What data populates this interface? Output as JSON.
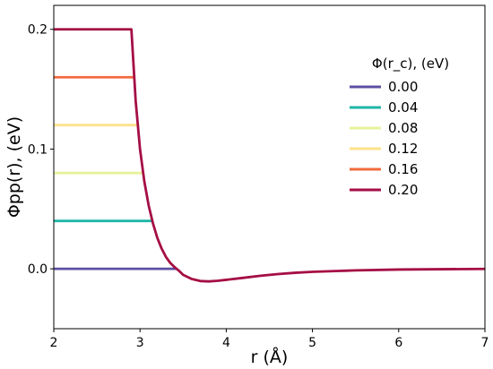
{
  "chart_data": {
    "type": "line",
    "xlabel": "r (Å)",
    "ylabel": "Φpp(r), (eV)",
    "xlim": [
      2,
      7
    ],
    "ylim": [
      -0.05,
      0.22
    ],
    "x_ticks": [
      2,
      3,
      4,
      5,
      6,
      7
    ],
    "y_ticks": [
      0.0,
      0.1,
      0.2
    ],
    "x_tick_labels": [
      "2",
      "3",
      "4",
      "5",
      "6",
      "7"
    ],
    "y_tick_labels": [
      "0.0",
      "0.1",
      "0.2"
    ],
    "grid": false,
    "legend": {
      "title": "Φ(r_c), (eV)",
      "placement": "upper-right",
      "entries": [
        "0.00",
        "0.04",
        "0.08",
        "0.12",
        "0.16",
        "0.20"
      ]
    },
    "series": [
      {
        "name": "0.00",
        "color": "#5e4fa2",
        "cap": 0.0,
        "x": [
          2.0,
          3.42
        ],
        "y": [
          0.0,
          0.0
        ]
      },
      {
        "name": "0.04",
        "color": "#1fb5a5",
        "cap": 0.04,
        "x": [
          2.0,
          3.15
        ],
        "y": [
          0.04,
          0.04
        ]
      },
      {
        "name": "0.08",
        "color": "#e8f29a",
        "cap": 0.08,
        "x": [
          2.0,
          3.03
        ],
        "y": [
          0.08,
          0.08
        ]
      },
      {
        "name": "0.12",
        "color": "#fde28a",
        "cap": 0.12,
        "x": [
          2.0,
          2.97
        ],
        "y": [
          0.12,
          0.12
        ]
      },
      {
        "name": "0.16",
        "color": "#f26b3d",
        "cap": 0.16,
        "x": [
          2.0,
          2.93
        ],
        "y": [
          0.16,
          0.16
        ]
      },
      {
        "name": "0.20",
        "color": "#a50e45",
        "cap": 0.2,
        "x": [
          2.0,
          2.9,
          2.95,
          3.0,
          3.05,
          3.1,
          3.15,
          3.2,
          3.25,
          3.3,
          3.35,
          3.4,
          3.45,
          3.5,
          3.6,
          3.7,
          3.8,
          3.9,
          4.0,
          4.2,
          4.4,
          4.6,
          4.8,
          5.0,
          5.5,
          6.0,
          6.5,
          7.0
        ],
        "y": [
          0.2,
          0.2,
          0.14,
          0.1,
          0.073,
          0.053,
          0.038,
          0.026,
          0.017,
          0.01,
          0.005,
          0.0015,
          -0.0015,
          -0.005,
          -0.0085,
          -0.0102,
          -0.0105,
          -0.01,
          -0.0092,
          -0.0075,
          -0.0058,
          -0.0044,
          -0.0033,
          -0.0025,
          -0.0013,
          -0.0006,
          -0.0003,
          -0.0001
        ]
      }
    ]
  }
}
